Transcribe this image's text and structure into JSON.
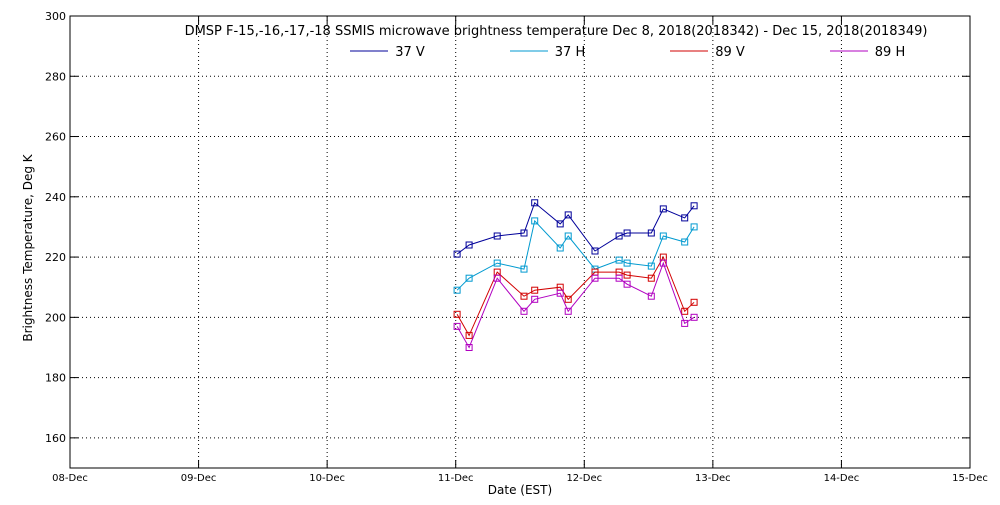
{
  "chart_data": {
    "type": "line",
    "title": "DMSP F-15,-16,-17,-18 SSMIS microwave brightness temperature Dec  8, 2018(2018342) - Dec 15, 2018(2018349)",
    "xlabel": "Date (EST)",
    "ylabel": "Brightness Temperature, Deg K",
    "x_ticks": [
      "08-Dec",
      "09-Dec",
      "10-Dec",
      "11-Dec",
      "12-Dec",
      "13-Dec",
      "14-Dec",
      "15-Dec"
    ],
    "y_ticks": [
      160,
      180,
      200,
      220,
      240,
      260,
      280,
      300
    ],
    "xlim": [
      "2018-12-08T00:00",
      "2018-12-15T00:00"
    ],
    "ylim": [
      150,
      300
    ],
    "grid": true,
    "legend_position": "top-center",
    "marker": "square",
    "series": [
      {
        "name": "37 V",
        "color": "#00009a",
        "points": [
          {
            "x": "2018-12-11T00:15",
            "y": 221
          },
          {
            "x": "2018-12-11T02:30",
            "y": 224
          },
          {
            "x": "2018-12-11T07:45",
            "y": 227
          },
          {
            "x": "2018-12-11T12:45",
            "y": 228
          },
          {
            "x": "2018-12-11T14:45",
            "y": 238
          },
          {
            "x": "2018-12-11T19:30",
            "y": 231
          },
          {
            "x": "2018-12-11T21:00",
            "y": 234
          },
          {
            "x": "2018-12-12T02:00",
            "y": 222
          },
          {
            "x": "2018-12-12T06:30",
            "y": 227
          },
          {
            "x": "2018-12-12T08:00",
            "y": 228
          },
          {
            "x": "2018-12-12T12:30",
            "y": 228
          },
          {
            "x": "2018-12-12T14:45",
            "y": 236
          },
          {
            "x": "2018-12-12T18:45",
            "y": 233
          },
          {
            "x": "2018-12-12T20:30",
            "y": 237
          }
        ]
      },
      {
        "name": "37 H",
        "color": "#009ad0",
        "points": [
          {
            "x": "2018-12-11T00:15",
            "y": 209
          },
          {
            "x": "2018-12-11T02:30",
            "y": 213
          },
          {
            "x": "2018-12-11T07:45",
            "y": 218
          },
          {
            "x": "2018-12-11T12:45",
            "y": 216
          },
          {
            "x": "2018-12-11T14:45",
            "y": 232
          },
          {
            "x": "2018-12-11T19:30",
            "y": 223
          },
          {
            "x": "2018-12-11T21:00",
            "y": 227
          },
          {
            "x": "2018-12-12T02:00",
            "y": 216
          },
          {
            "x": "2018-12-12T06:30",
            "y": 219
          },
          {
            "x": "2018-12-12T08:00",
            "y": 218
          },
          {
            "x": "2018-12-12T12:30",
            "y": 217
          },
          {
            "x": "2018-12-12T14:45",
            "y": 227
          },
          {
            "x": "2018-12-12T18:45",
            "y": 225
          },
          {
            "x": "2018-12-12T20:30",
            "y": 230
          }
        ]
      },
      {
        "name": "89 V",
        "color": "#d20000",
        "points": [
          {
            "x": "2018-12-11T00:15",
            "y": 201
          },
          {
            "x": "2018-12-11T02:30",
            "y": 194
          },
          {
            "x": "2018-12-11T07:45",
            "y": 215
          },
          {
            "x": "2018-12-11T12:45",
            "y": 207
          },
          {
            "x": "2018-12-11T14:45",
            "y": 209
          },
          {
            "x": "2018-12-11T19:30",
            "y": 210
          },
          {
            "x": "2018-12-11T21:00",
            "y": 206
          },
          {
            "x": "2018-12-12T02:00",
            "y": 215
          },
          {
            "x": "2018-12-12T06:30",
            "y": 215
          },
          {
            "x": "2018-12-12T08:00",
            "y": 214
          },
          {
            "x": "2018-12-12T12:30",
            "y": 213
          },
          {
            "x": "2018-12-12T14:45",
            "y": 220
          },
          {
            "x": "2018-12-12T18:45",
            "y": 202
          },
          {
            "x": "2018-12-12T20:30",
            "y": 205
          }
        ]
      },
      {
        "name": "89 H",
        "color": "#b000c0",
        "points": [
          {
            "x": "2018-12-11T00:15",
            "y": 197
          },
          {
            "x": "2018-12-11T02:30",
            "y": 190
          },
          {
            "x": "2018-12-11T07:45",
            "y": 213
          },
          {
            "x": "2018-12-11T12:45",
            "y": 202
          },
          {
            "x": "2018-12-11T14:45",
            "y": 206
          },
          {
            "x": "2018-12-11T19:30",
            "y": 208
          },
          {
            "x": "2018-12-11T21:00",
            "y": 202
          },
          {
            "x": "2018-12-12T02:00",
            "y": 213
          },
          {
            "x": "2018-12-12T06:30",
            "y": 213
          },
          {
            "x": "2018-12-12T08:00",
            "y": 211
          },
          {
            "x": "2018-12-12T12:30",
            "y": 207
          },
          {
            "x": "2018-12-12T14:45",
            "y": 218
          },
          {
            "x": "2018-12-12T18:45",
            "y": 198
          },
          {
            "x": "2018-12-12T20:30",
            "y": 200
          }
        ]
      }
    ]
  }
}
